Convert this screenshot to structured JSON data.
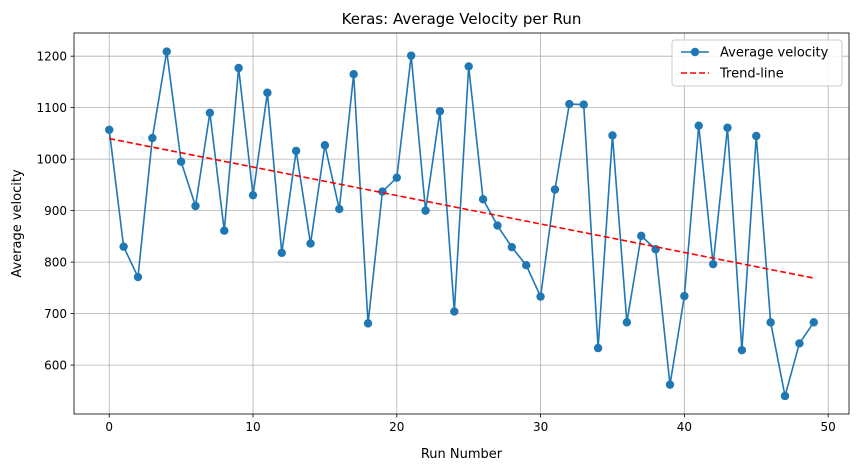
{
  "chart_data": {
    "type": "line",
    "title": "Keras: Average Velocity per Run",
    "xlabel": "Run Number",
    "ylabel": "Average velocity",
    "xlim": [
      -2.45,
      51.45
    ],
    "ylim": [
      505,
      1245
    ],
    "xticks": [
      0,
      10,
      20,
      30,
      40,
      50
    ],
    "yticks": [
      600,
      700,
      800,
      900,
      1000,
      1100,
      1200
    ],
    "grid": true,
    "legend_position": "top-right",
    "series": [
      {
        "name": "Average velocity",
        "style": "line-with-markers",
        "color": "#1f77b4",
        "x": [
          0,
          1,
          2,
          3,
          4,
          5,
          6,
          7,
          8,
          9,
          10,
          11,
          12,
          13,
          14,
          15,
          16,
          17,
          18,
          19,
          20,
          21,
          22,
          23,
          24,
          25,
          26,
          27,
          28,
          29,
          30,
          31,
          32,
          33,
          34,
          35,
          36,
          37,
          38,
          39,
          40,
          41,
          42,
          43,
          44,
          45,
          46,
          47,
          48,
          49
        ],
        "values": [
          1057,
          830,
          771,
          1041,
          1209,
          995,
          909,
          1090,
          861,
          1177,
          930,
          1129,
          818,
          1016,
          836,
          1027,
          903,
          1165,
          681,
          937,
          964,
          1201,
          900,
          1093,
          704,
          1180,
          922,
          871,
          829,
          794,
          733,
          941,
          1107,
          1106,
          633,
          1046,
          683,
          851,
          825,
          562,
          734,
          1065,
          796,
          1061,
          629,
          1045,
          683,
          540,
          642,
          683
        ]
      },
      {
        "name": "Trend-line",
        "style": "dashed",
        "color": "#ff0000",
        "x": [
          0,
          49
        ],
        "values": [
          1040,
          769
        ]
      }
    ]
  }
}
